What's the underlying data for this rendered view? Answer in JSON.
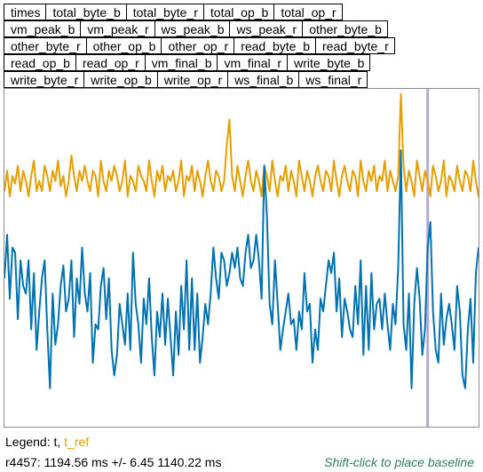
{
  "metric_buttons": [
    [
      "times",
      "total_byte_b",
      "total_byte_r",
      "total_op_b",
      "total_op_r"
    ],
    [
      "vm_peak_b",
      "vm_peak_r",
      "ws_peak_b",
      "ws_peak_r",
      "other_byte_b"
    ],
    [
      "other_byte_r",
      "other_op_b",
      "other_op_r",
      "read_byte_b",
      "read_byte_r"
    ],
    [
      "read_op_b",
      "read_op_r",
      "vm_final_b",
      "vm_final_r",
      "write_byte_b"
    ],
    [
      "write_byte_r",
      "write_op_b",
      "write_op_r",
      "ws_final_b",
      "ws_final_r"
    ]
  ],
  "legend": {
    "prefix": "Legend: ",
    "series_t": "t",
    "separator": ", ",
    "series_t_ref": "t_ref"
  },
  "stats": {
    "text": "r4457: 1194.56 ms +/- 6.45 1140.22 ms"
  },
  "hint": {
    "text": "Shift-click to place baseline"
  },
  "colors": {
    "t": "#0072b2",
    "t_ref": "#e69f00",
    "cursor": "#b4aad8"
  },
  "chart_data": {
    "type": "line",
    "title": "",
    "xlabel": "",
    "ylabel": "",
    "ylim": [
      1130,
      1262
    ],
    "cursor_index": 158,
    "series": [
      {
        "name": "t",
        "values": [
          1188,
          1205,
          1180,
          1200,
          1198,
          1172,
          1195,
          1185,
          1182,
          1195,
          1168,
          1190,
          1160,
          1175,
          1188,
          1195,
          1168,
          1145,
          1182,
          1162,
          1170,
          1185,
          1193,
          1175,
          1180,
          1195,
          1165,
          1188,
          1178,
          1200,
          1182,
          1175,
          1190,
          1155,
          1170,
          1168,
          1185,
          1192,
          1172,
          1188,
          1160,
          1150,
          1158,
          1178,
          1170,
          1162,
          1182,
          1160,
          1198,
          1178,
          1170,
          1155,
          1180,
          1170,
          1188,
          1165,
          1150,
          1175,
          1165,
          1182,
          1162,
          1180,
          1165,
          1150,
          1175,
          1158,
          1185,
          1168,
          1195,
          1160,
          1188,
          1160,
          1182,
          1155,
          1165,
          1178,
          1170,
          1182,
          1200,
          1188,
          1180,
          1198,
          1195,
          1185,
          1190,
          1198,
          1192,
          1200,
          1188,
          1185,
          1198,
          1205,
          1192,
          1195,
          1205,
          1195,
          1180,
          1232,
          1212,
          1178,
          1170,
          1195,
          1178,
          1160,
          1168,
          1175,
          1182,
          1170,
          1172,
          1160,
          1175,
          1168,
          1190,
          1175,
          1178,
          1155,
          1168,
          1160,
          1180,
          1175,
          1185,
          1195,
          1190,
          1198,
          1175,
          1188,
          1165,
          1180,
          1175,
          1168,
          1165,
          1185,
          1170,
          1195,
          1158,
          1185,
          1160,
          1190,
          1168,
          1178,
          1180,
          1168,
          1182,
          1170,
          1160,
          1178,
          1170,
          1192,
          1238,
          1170,
          1160,
          1182,
          1145,
          1178,
          1192,
          1180,
          1158,
          1168,
          1200,
          1210,
          1175,
          1160,
          1155,
          1182,
          1162,
          1172,
          1178,
          1170,
          1160,
          1185,
          1175,
          1150,
          1145,
          1168,
          1180,
          1155,
          1190,
          1200
        ]
      },
      {
        "name": "t_ref",
        "values": [
          1222,
          1230,
          1220,
          1228,
          1225,
          1232,
          1222,
          1230,
          1226,
          1220,
          1228,
          1234,
          1222,
          1226,
          1222,
          1232,
          1228,
          1222,
          1230,
          1226,
          1234,
          1224,
          1228,
          1220,
          1226,
          1236,
          1228,
          1222,
          1230,
          1226,
          1232,
          1226,
          1222,
          1230,
          1228,
          1220,
          1234,
          1226,
          1222,
          1230,
          1226,
          1232,
          1228,
          1222,
          1226,
          1234,
          1220,
          1228,
          1226,
          1222,
          1232,
          1228,
          1226,
          1222,
          1234,
          1226,
          1220,
          1230,
          1226,
          1232,
          1222,
          1228,
          1226,
          1230,
          1222,
          1226,
          1234,
          1220,
          1228,
          1226,
          1232,
          1222,
          1230,
          1226,
          1220,
          1228,
          1234,
          1226,
          1222,
          1230,
          1228,
          1222,
          1226,
          1240,
          1250,
          1228,
          1222,
          1232,
          1226,
          1220,
          1228,
          1234,
          1226,
          1222,
          1230,
          1226,
          1220,
          1232,
          1228,
          1222,
          1234,
          1226,
          1220,
          1228,
          1226,
          1232,
          1222,
          1230,
          1226,
          1220,
          1234,
          1228,
          1222,
          1230,
          1226,
          1220,
          1228,
          1232,
          1226,
          1222,
          1230,
          1228,
          1222,
          1234,
          1226,
          1220,
          1228,
          1232,
          1226,
          1222,
          1230,
          1228,
          1220,
          1234,
          1226,
          1222,
          1230,
          1226,
          1232,
          1222,
          1228,
          1226,
          1234,
          1222,
          1230,
          1226,
          1222,
          1228,
          1260,
          1232,
          1222,
          1230,
          1226,
          1220,
          1234,
          1228,
          1222,
          1230,
          1226,
          1220,
          1232,
          1228,
          1222,
          1226,
          1234,
          1220,
          1228,
          1226,
          1222,
          1232,
          1226,
          1222,
          1230,
          1228,
          1222,
          1234,
          1226,
          1220,
          1230,
          1226
        ]
      }
    ]
  }
}
